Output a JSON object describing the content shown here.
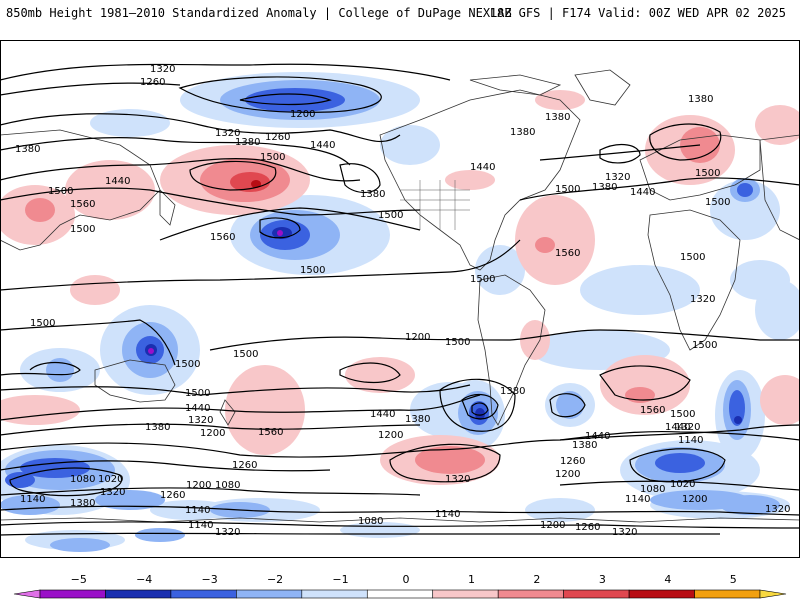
{
  "header": {
    "left_title": "850mb Height 1981–2010 Standardized Anomaly | College of DuPage NEXLAB",
    "right_title": "18Z GFS | F174 Valid: 00Z WED APR 02 2025"
  },
  "colorbar": {
    "ticks": [
      "−5",
      "−4",
      "−3",
      "−2",
      "−1",
      "0",
      "1",
      "2",
      "3",
      "4",
      "5"
    ],
    "colors": [
      "#e070e8",
      "#9a10c8",
      "#1a2fb0",
      "#3b62e0",
      "#8fb4f5",
      "#cfe2fb",
      "#ffffff",
      "#f8c7c9",
      "#f08a90",
      "#e04850",
      "#b80d14",
      "#f2a010",
      "#f7d840"
    ]
  },
  "contour_labels": [
    "1320",
    "1260",
    "1200",
    "1380",
    "1320",
    "1260",
    "1440",
    "1500",
    "1380",
    "1440",
    "1380",
    "1380",
    "1380",
    "1440",
    "1500",
    "1380",
    "1320",
    "1440",
    "1500",
    "1560",
    "1500",
    "1560",
    "1500",
    "1380",
    "1500",
    "1500",
    "1560",
    "1500",
    "1500",
    "1500",
    "1500",
    "1500",
    "1320",
    "1500",
    "1500",
    "1500",
    "1440",
    "1380",
    "1500",
    "1440",
    "1380",
    "1320",
    "1200",
    "1560",
    "1440",
    "1380",
    "1260",
    "1200",
    "1380",
    "1320",
    "1260",
    "1200",
    "1560",
    "1500",
    "1440",
    "1320",
    "1140",
    "1080",
    "1020",
    "1140",
    "1320",
    "1380",
    "1260",
    "1200",
    "1080",
    "1140",
    "1020",
    "1080",
    "1140",
    "1140",
    "1320",
    "1080",
    "1140",
    "1200",
    "1260",
    "1320",
    "1200",
    "1320",
    "1200"
  ]
}
